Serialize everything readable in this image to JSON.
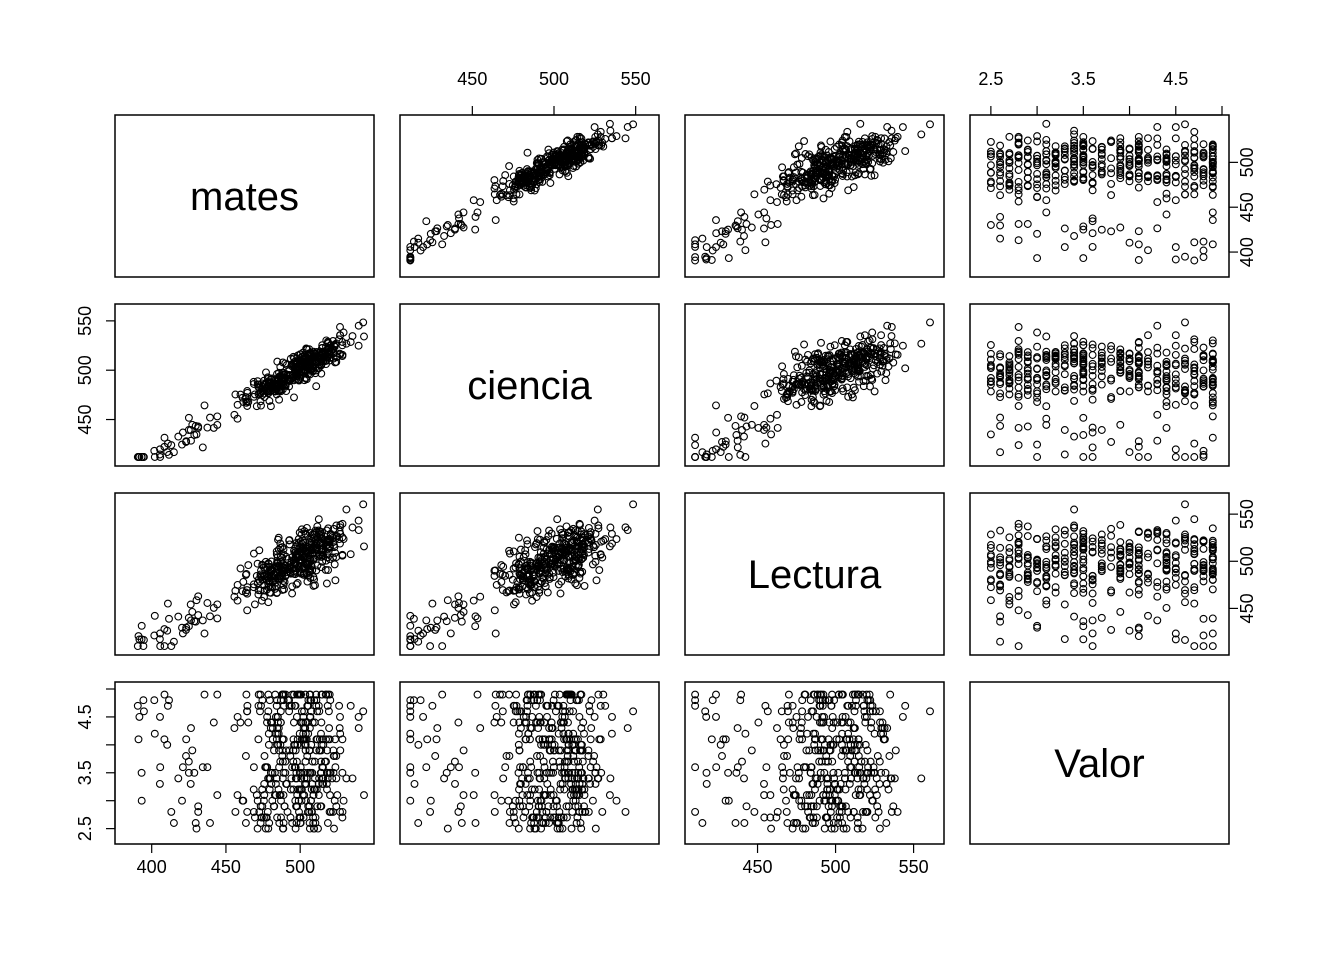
{
  "chart_data": {
    "type": "scatter",
    "layout": "scatterplot-matrix",
    "variables": [
      {
        "name": "mates",
        "range": [
          380,
          545
        ],
        "ticks": [
          400,
          450,
          500,
          550
        ],
        "tick_labels": [
          "400",
          "450",
          "500",
          "550"
        ]
      },
      {
        "name": "ciencia",
        "range": [
          410,
          560
        ],
        "ticks": [
          450,
          500,
          550
        ],
        "tick_labels": [
          "450",
          "500",
          "550"
        ]
      },
      {
        "name": "Lectura",
        "range": [
          408,
          565
        ],
        "ticks": [
          450,
          500,
          550
        ],
        "tick_labels": [
          "450",
          "500",
          "550"
        ]
      },
      {
        "name": "Valor",
        "range": [
          2.35,
          5.0
        ],
        "ticks": [
          2.5,
          3.0,
          3.5,
          4.0,
          4.5,
          5.0
        ],
        "tick_labels": [
          "2.5",
          "",
          "3.5",
          "",
          "4.5",
          ""
        ]
      }
    ],
    "correlations": {
      "mates-ciencia": 0.93,
      "mates-Lectura": 0.82,
      "ciencia-Lectura": 0.8,
      "mates-Valor": 0.0,
      "ciencia-Valor": 0.0,
      "Lectura-Valor": 0.0
    },
    "n_points": 420,
    "point_shape": "open-circle",
    "grid": false,
    "legend": "none"
  }
}
